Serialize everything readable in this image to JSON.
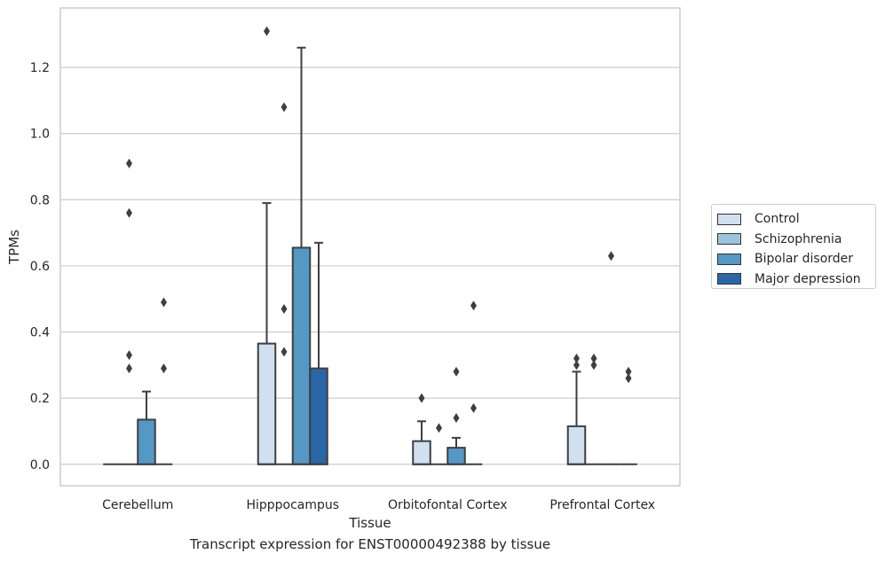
{
  "chart_data": {
    "type": "box",
    "title": "Transcript expression for ENST00000492388 by tissue",
    "xlabel": "Tissue",
    "ylabel": "TPMs",
    "ylim": [
      -0.065,
      1.38
    ],
    "yticks": [
      "0.0",
      "0.2",
      "0.4",
      "0.6",
      "0.8",
      "1.0",
      "1.2"
    ],
    "grid": "horizontal",
    "legend_position": "right",
    "categories": [
      "Cerebellum",
      "Hipppocampus",
      "Orbitofontal Cortex",
      "Prefrontal Cortex"
    ],
    "series": [
      {
        "name": "Control",
        "color": "#d0e0f0",
        "boxes": [
          {
            "q1": 0,
            "median": 0,
            "q3": 0,
            "whisker_low": 0,
            "whisker_high": 0,
            "outliers": []
          },
          {
            "q1": 0,
            "median": 0,
            "q3": 0.365,
            "whisker_low": 0,
            "whisker_high": 0.79,
            "outliers": [
              1.31
            ]
          },
          {
            "q1": 0,
            "median": 0,
            "q3": 0.07,
            "whisker_low": 0,
            "whisker_high": 0.13,
            "outliers": [
              0.2
            ]
          },
          {
            "q1": 0,
            "median": 0,
            "q3": 0.115,
            "whisker_low": 0,
            "whisker_high": 0.28,
            "outliers": [
              0.3,
              0.32
            ]
          }
        ]
      },
      {
        "name": "Schizophrenia",
        "color": "#9dc4de",
        "boxes": [
          {
            "q1": 0,
            "median": 0,
            "q3": 0,
            "whisker_low": 0,
            "whisker_high": 0,
            "outliers": [
              0.29,
              0.33,
              0.76,
              0.91
            ]
          },
          {
            "q1": 0,
            "median": 0,
            "q3": 0,
            "whisker_low": 0,
            "whisker_high": 0,
            "outliers": [
              0.34,
              0.47,
              1.08
            ]
          },
          {
            "q1": 0,
            "median": 0,
            "q3": 0,
            "whisker_low": 0,
            "whisker_high": 0,
            "outliers": [
              0.11
            ]
          },
          {
            "q1": 0,
            "median": 0,
            "q3": 0,
            "whisker_low": 0,
            "whisker_high": 0,
            "outliers": [
              0.3,
              0.32
            ]
          }
        ]
      },
      {
        "name": "Bipolar disorder",
        "color": "#5498c6",
        "boxes": [
          {
            "q1": 0,
            "median": 0,
            "q3": 0.135,
            "whisker_low": 0,
            "whisker_high": 0.22,
            "outliers": []
          },
          {
            "q1": 0,
            "median": 0,
            "q3": 0.655,
            "whisker_low": 0,
            "whisker_high": 1.26,
            "outliers": []
          },
          {
            "q1": 0,
            "median": 0,
            "q3": 0.05,
            "whisker_low": 0,
            "whisker_high": 0.08,
            "outliers": [
              0.14,
              0.28
            ]
          },
          {
            "q1": 0,
            "median": 0,
            "q3": 0,
            "whisker_low": 0,
            "whisker_high": 0,
            "outliers": [
              0.63
            ]
          }
        ]
      },
      {
        "name": "Major depression",
        "color": "#2967a8",
        "boxes": [
          {
            "q1": 0,
            "median": 0,
            "q3": 0,
            "whisker_low": 0,
            "whisker_high": 0,
            "outliers": [
              0.29,
              0.49
            ]
          },
          {
            "q1": 0,
            "median": 0,
            "q3": 0.29,
            "whisker_low": 0,
            "whisker_high": 0.67,
            "outliers": []
          },
          {
            "q1": 0,
            "median": 0,
            "q3": 0,
            "whisker_low": 0,
            "whisker_high": 0,
            "outliers": [
              0.17,
              0.48
            ]
          },
          {
            "q1": 0,
            "median": 0,
            "q3": 0,
            "whisker_low": 0,
            "whisker_high": 0,
            "outliers": [
              0.26,
              0.28
            ]
          }
        ]
      }
    ]
  }
}
